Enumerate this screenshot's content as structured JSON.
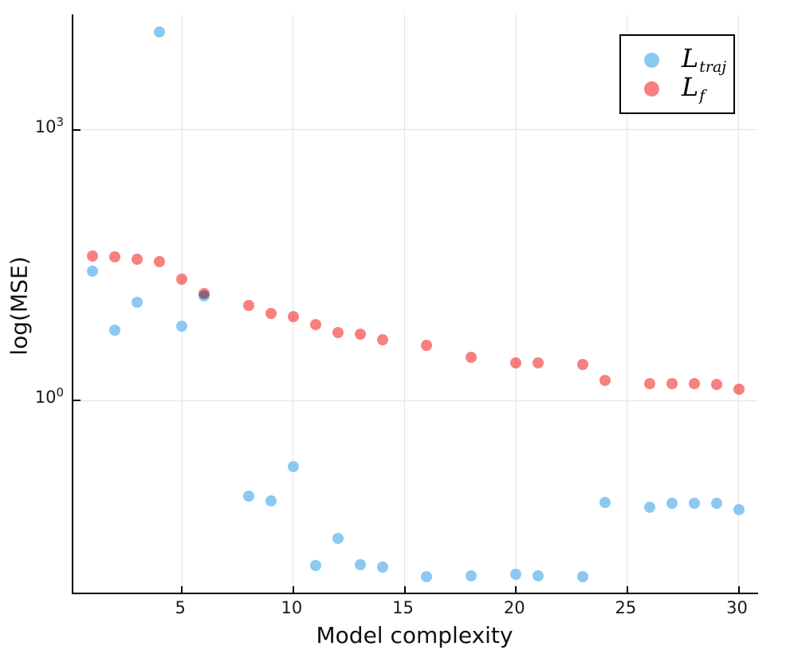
{
  "figure": {
    "background": "#ffffff",
    "xlabel": "Model complexity",
    "ylabel": "log(MSE)",
    "legend": {
      "entries": [
        {
          "name": "L_traj",
          "label_main": "L",
          "label_sub": "traj",
          "color": "#8BC9F2"
        },
        {
          "name": "L_f",
          "label_main": "L",
          "label_sub": "f",
          "color": "#F88080"
        }
      ]
    }
  },
  "chart_data": {
    "type": "scatter",
    "title": "",
    "xlabel": "Model complexity",
    "ylabel": "log(MSE)",
    "yscale": "log10",
    "grid": true,
    "legend_position": "top-right",
    "xlim": [
      0.125,
      30.875
    ],
    "ylim_log10": [
      -2.128,
      4.278
    ],
    "x_ticks": [
      5,
      10,
      15,
      20,
      25,
      30
    ],
    "y_ticks_exp": [
      0,
      3
    ],
    "marker_px": 14,
    "x": [
      1,
      2,
      3,
      4,
      5,
      6,
      8,
      9,
      10,
      11,
      12,
      13,
      14,
      16,
      18,
      20,
      21,
      23,
      24,
      26,
      27,
      28,
      29,
      30
    ],
    "series": [
      {
        "name": "L_traj",
        "color": "#8BC9F2",
        "values": [
          27,
          6.0,
          12.2,
          12200,
          6.6,
          14.5,
          0.087,
          0.077,
          0.185,
          0.0149,
          0.03,
          0.0152,
          0.0143,
          0.0112,
          0.0114,
          0.0118,
          0.0114,
          0.0111,
          0.074,
          0.066,
          0.072,
          0.072,
          0.073,
          0.062
        ]
      },
      {
        "name": "L_f",
        "color": "#F88080",
        "values": [
          39.5,
          39.0,
          36.5,
          34.4,
          22.0,
          15.2,
          11.2,
          9.2,
          8.5,
          7.0,
          5.6,
          5.4,
          4.7,
          4.1,
          3.0,
          2.6,
          2.6,
          2.5,
          1.66,
          1.53,
          1.53,
          1.53,
          1.5,
          1.33
        ]
      }
    ]
  }
}
